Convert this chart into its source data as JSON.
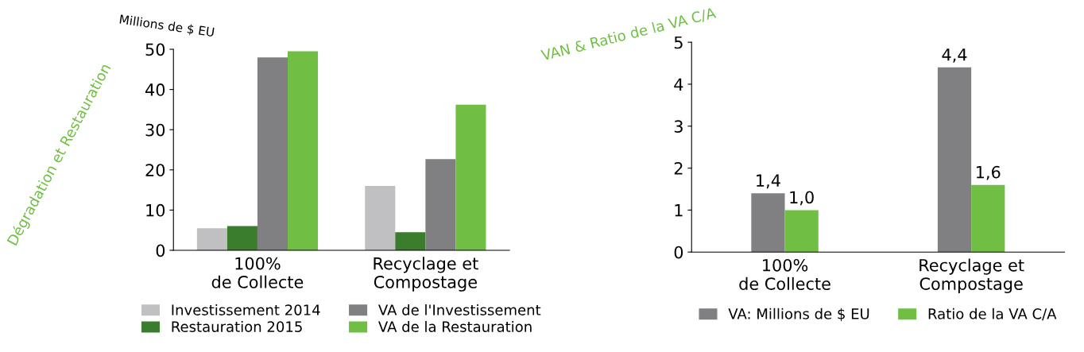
{
  "chart_data": [
    {
      "type": "bar",
      "ylabel": "Dégradation et Restauration",
      "subtitle": "Millions de $ EU",
      "categories": [
        "100%\nde Collecte",
        "Recyclage et\nCompostage"
      ],
      "series": [
        {
          "name": "Investissement 2014",
          "color": "#c0c0c2",
          "values": [
            5.5,
            16
          ]
        },
        {
          "name": "Restauration 2015",
          "color": "#3a7d2c",
          "values": [
            6,
            4.5
          ]
        },
        {
          "name": "VA de l'Investissement",
          "color": "#808083",
          "values": [
            48,
            22.7
          ]
        },
        {
          "name": "VA de la Restauration",
          "color": "#70bf44",
          "values": [
            49.5,
            36.2
          ]
        }
      ],
      "ylim": [
        0,
        50
      ],
      "yticks": [
        0,
        10,
        20,
        30,
        40,
        50
      ],
      "grid": false,
      "legend": "bottom"
    },
    {
      "type": "bar",
      "ylabel": "VAN & Ratio de la VA C/A",
      "categories": [
        "100%\nde Collecte",
        "Recyclage et\nCompostage"
      ],
      "series": [
        {
          "name": "VA: Millions de $ EU",
          "color": "#808083",
          "values": [
            1.4,
            4.4
          ],
          "value_labels": [
            "1,4",
            "4,4"
          ]
        },
        {
          "name": "Ratio de la VA C/A",
          "color": "#70bf44",
          "values": [
            1.0,
            1.6
          ],
          "value_labels": [
            "1,0",
            "1,6"
          ]
        }
      ],
      "ylim": [
        0,
        5
      ],
      "yticks": [
        0,
        1,
        2,
        3,
        4,
        5
      ],
      "grid": false,
      "legend": "bottom"
    }
  ]
}
